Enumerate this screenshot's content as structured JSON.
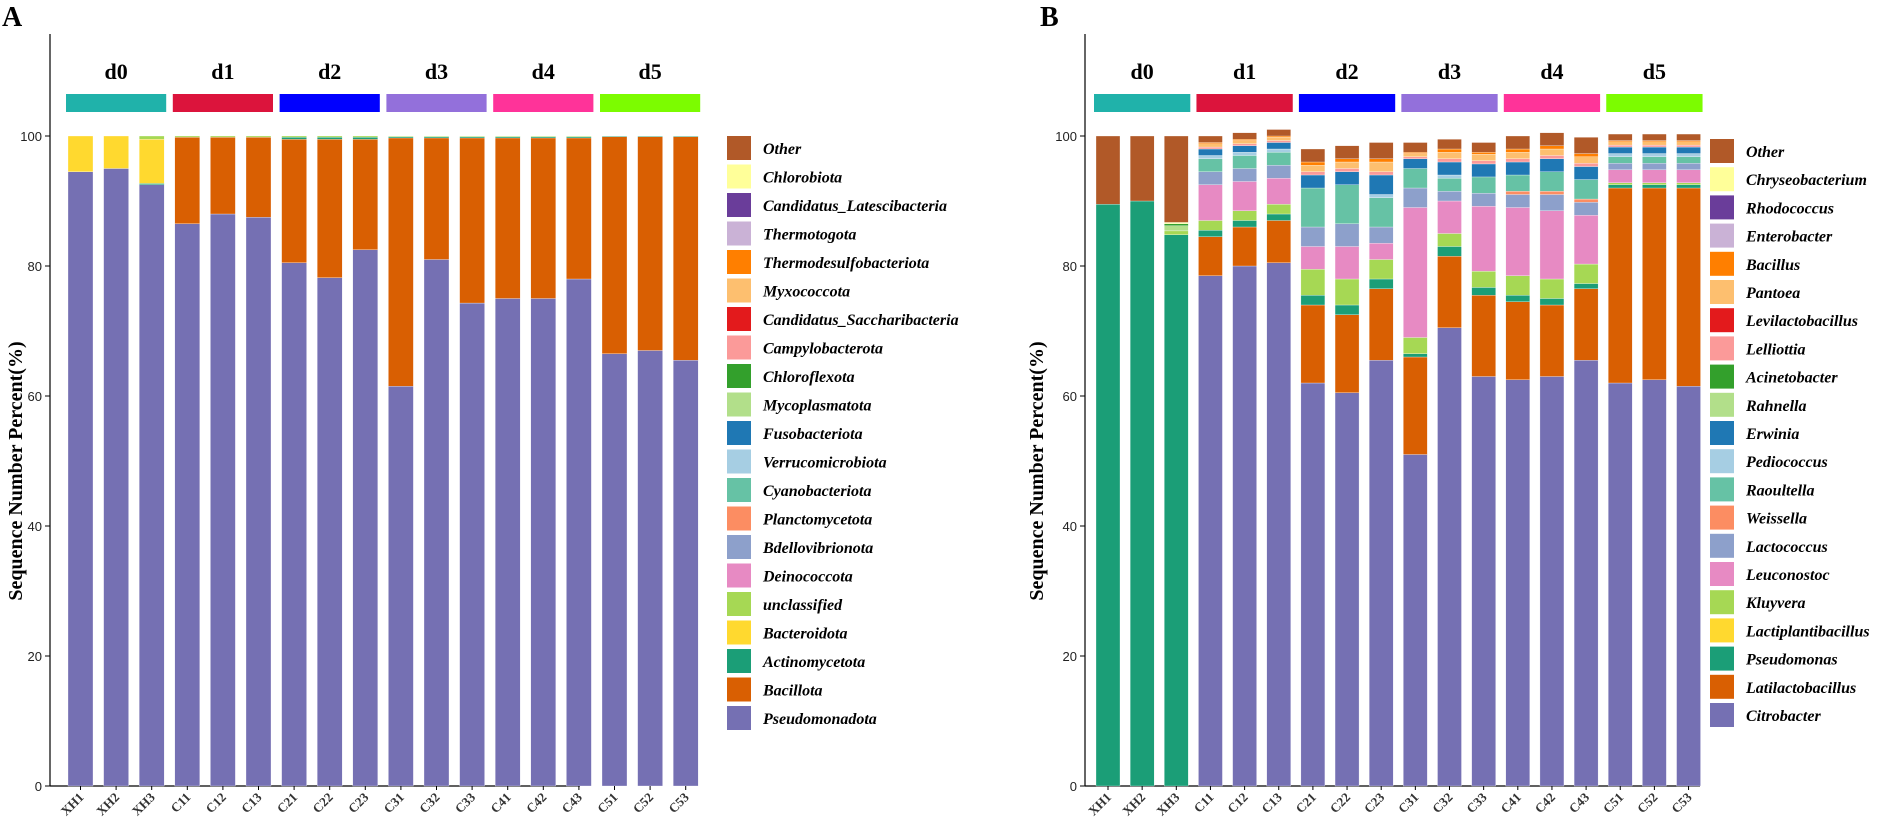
{
  "chart_data": [
    {
      "panel": "A",
      "type": "bar",
      "stacked": true,
      "ylabel": "Sequence Number Percent(%)",
      "ylim": [
        0,
        100
      ],
      "yticks": [
        0,
        20,
        40,
        60,
        80,
        100
      ],
      "categories": [
        "XH1",
        "XH2",
        "XH3",
        "C11",
        "C12",
        "C13",
        "C21",
        "C22",
        "C23",
        "C31",
        "C32",
        "C33",
        "C41",
        "C42",
        "C43",
        "C51",
        "C52",
        "C53"
      ],
      "groups": [
        {
          "label": "d0",
          "color": "#20B2AA",
          "count": 3
        },
        {
          "label": "d1",
          "color": "#DC143C",
          "count": 3
        },
        {
          "label": "d2",
          "color": "#0000FF",
          "count": 3
        },
        {
          "label": "d3",
          "color": "#9370DB",
          "count": 3
        },
        {
          "label": "d4",
          "color": "#FF3399",
          "count": 3
        },
        {
          "label": "d5",
          "color": "#7CFC00",
          "count": 3
        }
      ],
      "series": [
        {
          "name": "Pseudomonadota",
          "color": "#7570B3",
          "values": [
            94.5,
            95,
            92.5,
            86.5,
            88,
            87.5,
            80.5,
            78.2,
            82.5,
            61.5,
            81,
            74.3,
            75,
            75,
            78,
            66.5,
            67,
            65.5
          ]
        },
        {
          "name": "Bacillota",
          "color": "#D95F02",
          "values": [
            0,
            0,
            0,
            13.3,
            11.8,
            12.3,
            19,
            21.3,
            17,
            38.2,
            18.7,
            25.4,
            24.7,
            24.7,
            21.7,
            33.4,
            32.9,
            34.4
          ]
        },
        {
          "name": "Actinomycetota",
          "color": "#1B9E77",
          "values": [
            0,
            0,
            0.2,
            0,
            0,
            0,
            0.3,
            0.3,
            0.3,
            0.2,
            0.2,
            0.2,
            0.2,
            0.2,
            0.2,
            0.1,
            0.1,
            0.1
          ]
        },
        {
          "name": "Bacteroidota",
          "color": "#FFD92F",
          "values": [
            5.5,
            5,
            6.8,
            0,
            0,
            0,
            0,
            0,
            0,
            0,
            0,
            0,
            0,
            0,
            0,
            0,
            0,
            0
          ]
        },
        {
          "name": "unclassified",
          "color": "#A6D854",
          "values": [
            0,
            0,
            0.5,
            0.2,
            0.2,
            0.2,
            0.2,
            0.2,
            0.2,
            0.1,
            0.1,
            0.1,
            0.1,
            0.1,
            0.1,
            0,
            0,
            0
          ]
        },
        {
          "name": "Deinococcota",
          "color": "#E78AC3",
          "values": [
            0,
            0,
            0,
            0,
            0,
            0,
            0,
            0,
            0,
            0,
            0,
            0,
            0,
            0,
            0,
            0,
            0,
            0
          ]
        },
        {
          "name": "Bdellovibrionota",
          "color": "#8DA0CB",
          "values": [
            0,
            0,
            0,
            0,
            0,
            0,
            0,
            0,
            0,
            0,
            0,
            0,
            0,
            0,
            0,
            0,
            0,
            0
          ]
        },
        {
          "name": "Planctomycetota",
          "color": "#FC8D62",
          "values": [
            0,
            0,
            0,
            0,
            0,
            0,
            0,
            0,
            0,
            0,
            0,
            0,
            0,
            0,
            0,
            0,
            0,
            0
          ]
        },
        {
          "name": "Cyanobacteriota",
          "color": "#66C2A5",
          "values": [
            0,
            0,
            0,
            0,
            0,
            0,
            0,
            0,
            0,
            0,
            0,
            0,
            0,
            0,
            0,
            0,
            0,
            0
          ]
        },
        {
          "name": "Verrucomicrobiota",
          "color": "#A6CEE3",
          "values": [
            0,
            0,
            0,
            0,
            0,
            0,
            0,
            0,
            0,
            0,
            0,
            0,
            0,
            0,
            0,
            0,
            0,
            0
          ]
        },
        {
          "name": "Fusobacteriota",
          "color": "#1F78B4",
          "values": [
            0,
            0,
            0,
            0,
            0,
            0,
            0,
            0,
            0,
            0,
            0,
            0,
            0,
            0,
            0,
            0,
            0,
            0
          ]
        },
        {
          "name": "Mycoplasmatota",
          "color": "#B2DF8A",
          "values": [
            0,
            0,
            0,
            0,
            0,
            0,
            0,
            0,
            0,
            0,
            0,
            0,
            0,
            0,
            0,
            0,
            0,
            0
          ]
        },
        {
          "name": "Chloroflexota",
          "color": "#33A02C",
          "values": [
            0,
            0,
            0,
            0,
            0,
            0,
            0,
            0,
            0,
            0,
            0,
            0,
            0,
            0,
            0,
            0,
            0,
            0
          ]
        },
        {
          "name": "Campylobacterota",
          "color": "#FB9A99",
          "values": [
            0,
            0,
            0,
            0,
            0,
            0,
            0,
            0,
            0,
            0,
            0,
            0,
            0,
            0,
            0,
            0,
            0,
            0
          ]
        },
        {
          "name": "Candidatus_Saccharibacteria",
          "color": "#E31A1C",
          "values": [
            0,
            0,
            0,
            0,
            0,
            0,
            0,
            0,
            0,
            0,
            0,
            0,
            0,
            0,
            0,
            0,
            0,
            0
          ]
        },
        {
          "name": "Myxococcota",
          "color": "#FDBF6F",
          "values": [
            0,
            0,
            0,
            0,
            0,
            0,
            0,
            0,
            0,
            0,
            0,
            0,
            0,
            0,
            0,
            0,
            0,
            0
          ]
        },
        {
          "name": "Thermodesulfobacteriota",
          "color": "#FF7F00",
          "values": [
            0,
            0,
            0,
            0,
            0,
            0,
            0,
            0,
            0,
            0,
            0,
            0,
            0,
            0,
            0,
            0,
            0,
            0
          ]
        },
        {
          "name": "Thermotogota",
          "color": "#CAB2D6",
          "values": [
            0,
            0,
            0,
            0,
            0,
            0,
            0,
            0,
            0,
            0,
            0,
            0,
            0,
            0,
            0,
            0,
            0,
            0
          ]
        },
        {
          "name": "Candidatus_Latescibacteria",
          "color": "#6A3D9A",
          "values": [
            0,
            0,
            0,
            0,
            0,
            0,
            0,
            0,
            0,
            0,
            0,
            0,
            0,
            0,
            0,
            0,
            0,
            0
          ]
        },
        {
          "name": "Chlorobiota",
          "color": "#FFFF99",
          "values": [
            0,
            0,
            0,
            0,
            0,
            0,
            0,
            0,
            0,
            0,
            0,
            0,
            0,
            0,
            0,
            0,
            0,
            0
          ]
        },
        {
          "name": "Other",
          "color": "#B15928",
          "values": [
            0,
            0,
            0,
            0,
            0,
            0,
            0,
            0,
            0,
            0,
            0,
            0,
            0,
            0,
            0,
            0,
            0,
            0
          ]
        }
      ]
    },
    {
      "panel": "B",
      "type": "bar",
      "stacked": true,
      "ylabel": "Sequence Number Percent(%)",
      "ylim": [
        0,
        100
      ],
      "yticks": [
        0,
        20,
        40,
        60,
        80,
        100
      ],
      "categories": [
        "XH1",
        "XH2",
        "XH3",
        "C11",
        "C12",
        "C13",
        "C21",
        "C22",
        "C23",
        "C31",
        "C32",
        "C33",
        "C41",
        "C42",
        "C43",
        "C51",
        "C52",
        "C53"
      ],
      "groups": [
        {
          "label": "d0",
          "color": "#20B2AA",
          "count": 3
        },
        {
          "label": "d1",
          "color": "#DC143C",
          "count": 3
        },
        {
          "label": "d2",
          "color": "#0000FF",
          "count": 3
        },
        {
          "label": "d3",
          "color": "#9370DB",
          "count": 3
        },
        {
          "label": "d4",
          "color": "#FF3399",
          "count": 3
        },
        {
          "label": "d5",
          "color": "#7CFC00",
          "count": 3
        }
      ],
      "series": [
        {
          "name": "Citrobacter",
          "color": "#7570B3",
          "values": [
            0,
            0,
            0,
            78.5,
            80,
            80.5,
            62,
            60.5,
            65.5,
            51,
            70.5,
            63,
            62.5,
            63,
            65.5,
            62,
            62.5,
            61.5
          ]
        },
        {
          "name": "Latilactobacillus",
          "color": "#D95F02",
          "values": [
            0,
            0,
            0,
            6,
            6,
            6.5,
            12,
            12,
            11,
            15,
            11,
            12.5,
            12,
            11,
            11,
            30,
            29.5,
            30.5
          ]
        },
        {
          "name": "Pseudomonas",
          "color": "#1B9E77",
          "values": [
            89.5,
            90,
            84.8,
            1,
            1,
            1,
            1.5,
            1.5,
            1.5,
            0.5,
            1.5,
            1.2,
            1,
            1,
            0.8,
            0.5,
            0.5,
            0.5
          ]
        },
        {
          "name": "Lactiplantibacillus",
          "color": "#FFD92F",
          "values": [
            0,
            0,
            0,
            0,
            0,
            0,
            0,
            0,
            0,
            0,
            0,
            0,
            0,
            0,
            0,
            0,
            0,
            0
          ]
        },
        {
          "name": "Kluyvera",
          "color": "#A6D854",
          "values": [
            0,
            0,
            0.6,
            1.5,
            1.5,
            1.5,
            4,
            4,
            3,
            2.5,
            2,
            2.5,
            3,
            3,
            3,
            0.3,
            0.3,
            0.3
          ]
        },
        {
          "name": "Leuconostoc",
          "color": "#E78AC3",
          "values": [
            0,
            0,
            0,
            5.5,
            4.5,
            4,
            3.5,
            5,
            2.5,
            20,
            5,
            10,
            10.5,
            10.5,
            7.5,
            2,
            2,
            2
          ]
        },
        {
          "name": "Lactococcus",
          "color": "#8DA0CB",
          "values": [
            0,
            0,
            0,
            2,
            2,
            2,
            3,
            3.5,
            2.5,
            3,
            1.5,
            2,
            2,
            2.5,
            2,
            1,
            1,
            1
          ]
        },
        {
          "name": "Weissella",
          "color": "#FC8D62",
          "values": [
            0,
            0,
            0,
            0,
            0,
            0,
            0,
            0,
            0,
            0,
            0,
            0,
            0.5,
            0.5,
            0.5,
            0,
            0,
            0
          ]
        },
        {
          "name": "Raoultella",
          "color": "#66C2A5",
          "values": [
            0,
            0,
            0,
            2,
            2,
            2,
            6,
            6,
            4.5,
            3,
            2,
            2.5,
            2.5,
            3,
            3,
            1,
            1,
            1
          ]
        },
        {
          "name": "Pediococcus",
          "color": "#A6CEE3",
          "values": [
            0,
            0,
            0,
            0.5,
            0.5,
            0.5,
            0,
            0,
            0.5,
            0,
            0.5,
            0,
            0,
            0,
            0,
            0.5,
            0.5,
            0.5
          ]
        },
        {
          "name": "Erwinia",
          "color": "#1F78B4",
          "values": [
            0,
            0,
            0,
            1,
            1,
            1,
            2,
            2,
            3,
            1.5,
            2,
            2,
            2,
            2,
            2,
            1,
            1,
            1
          ]
        },
        {
          "name": "Rahnella",
          "color": "#B2DF8A",
          "values": [
            0,
            0,
            0.8,
            0,
            0,
            0,
            0,
            0,
            0,
            0,
            0,
            0,
            0,
            0,
            0,
            0,
            0,
            0
          ]
        },
        {
          "name": "Acinetobacter",
          "color": "#33A02C",
          "values": [
            0,
            0,
            0.3,
            0,
            0,
            0,
            0,
            0,
            0,
            0,
            0,
            0,
            0,
            0,
            0,
            0,
            0,
            0
          ]
        },
        {
          "name": "Lelliottia",
          "color": "#FB9A99",
          "values": [
            0,
            0,
            0,
            0.3,
            0.3,
            0.3,
            0.5,
            0.5,
            0.5,
            0.3,
            0.5,
            0.5,
            0.5,
            0.5,
            0.5,
            0.3,
            0.3,
            0.3
          ]
        },
        {
          "name": "Levilactobacillus",
          "color": "#E31A1C",
          "values": [
            0,
            0,
            0,
            0,
            0,
            0,
            0,
            0,
            0,
            0,
            0,
            0,
            0,
            0,
            0,
            0,
            0,
            0
          ]
        },
        {
          "name": "Pantoea",
          "color": "#FDBF6F",
          "values": [
            0,
            0,
            0,
            0.5,
            0.5,
            0.5,
            1,
            1,
            1.5,
            0.5,
            1,
            1,
            1,
            1,
            1,
            0.5,
            0.5,
            0.5
          ]
        },
        {
          "name": "Bacillus",
          "color": "#FF7F00",
          "values": [
            0,
            0,
            0,
            0.2,
            0.2,
            0.2,
            0.5,
            0.5,
            0.5,
            0.2,
            0.5,
            0.3,
            0.5,
            0.5,
            0.5,
            0.2,
            0.2,
            0.2
          ]
        },
        {
          "name": "Enterobacter",
          "color": "#CAB2D6",
          "values": [
            0,
            0,
            0,
            0,
            0,
            0,
            0,
            0,
            0,
            0,
            0,
            0,
            0,
            0,
            0,
            0,
            0,
            0
          ]
        },
        {
          "name": "Rhodococcus",
          "color": "#6A3D9A",
          "values": [
            0,
            0,
            0,
            0,
            0,
            0,
            0,
            0,
            0,
            0,
            0,
            0,
            0,
            0,
            0,
            0,
            0,
            0
          ]
        },
        {
          "name": "Chryseobacterium",
          "color": "#FFFF99",
          "values": [
            0,
            0,
            0.2,
            0,
            0,
            0,
            0,
            0,
            0,
            0,
            0,
            0,
            0,
            0,
            0,
            0,
            0,
            0
          ]
        },
        {
          "name": "Other",
          "color": "#B15928",
          "values": [
            10.5,
            10,
            13.3,
            1,
            1,
            1,
            2,
            2,
            2.5,
            1.5,
            1.5,
            1.5,
            2,
            2,
            2.5,
            1,
            1,
            1
          ]
        }
      ]
    }
  ]
}
